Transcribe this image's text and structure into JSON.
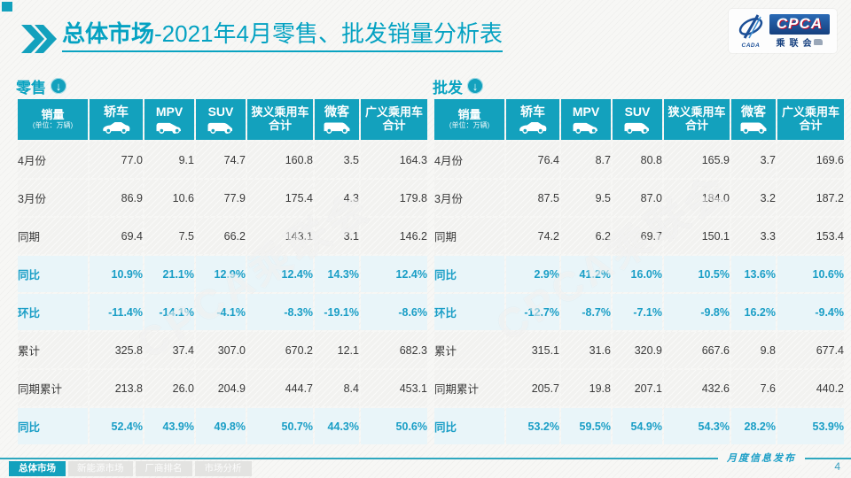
{
  "slide": {
    "title_primary": "总体市场",
    "title_secondary": "-2021年4月零售、批发销量分析表",
    "watermark": "CPCA乘联会",
    "footer_note": "月度信息发布",
    "page_number": "4"
  },
  "logo": {
    "acronym": "CPCA",
    "cn_name": "乘联会",
    "emblem_text": "CADA"
  },
  "table_columns": {
    "first": {
      "title": "销量",
      "unit": "(单位：万辆)"
    },
    "vehicle_columns": [
      {
        "label": "轿车",
        "icon": "sedan-icon"
      },
      {
        "label": "MPV",
        "icon": "mpv-icon"
      },
      {
        "label": "SUV",
        "icon": "suv-icon"
      },
      {
        "label": "狭义乘用车合计",
        "icon": ""
      },
      {
        "label": "微客",
        "icon": "microvan-icon"
      },
      {
        "label": "广义乘用车合计",
        "icon": ""
      }
    ]
  },
  "tables": [
    {
      "name": "零售",
      "rows": [
        {
          "label": "4月份",
          "highlight": false,
          "values": [
            "77.0",
            "9.1",
            "74.7",
            "160.8",
            "3.5",
            "164.3"
          ]
        },
        {
          "label": "3月份",
          "highlight": false,
          "values": [
            "86.9",
            "10.6",
            "77.9",
            "175.4",
            "4.3",
            "179.8"
          ]
        },
        {
          "label": "同期",
          "highlight": false,
          "values": [
            "69.4",
            "7.5",
            "66.2",
            "143.1",
            "3.1",
            "146.2"
          ]
        },
        {
          "label": "同比",
          "highlight": true,
          "values": [
            "10.9%",
            "21.1%",
            "12.9%",
            "12.4%",
            "14.3%",
            "12.4%"
          ]
        },
        {
          "label": "环比",
          "highlight": true,
          "values": [
            "-11.4%",
            "-14.1%",
            "-4.1%",
            "-8.3%",
            "-19.1%",
            "-8.6%"
          ]
        },
        {
          "label": "累计",
          "highlight": false,
          "values": [
            "325.8",
            "37.4",
            "307.0",
            "670.2",
            "12.1",
            "682.3"
          ]
        },
        {
          "label": "同期累计",
          "highlight": false,
          "values": [
            "213.8",
            "26.0",
            "204.9",
            "444.7",
            "8.4",
            "453.1"
          ]
        },
        {
          "label": "同比",
          "highlight": true,
          "values": [
            "52.4%",
            "43.9%",
            "49.8%",
            "50.7%",
            "44.3%",
            "50.6%"
          ]
        }
      ]
    },
    {
      "name": "批发",
      "rows": [
        {
          "label": "4月份",
          "highlight": false,
          "values": [
            "76.4",
            "8.7",
            "80.8",
            "165.9",
            "3.7",
            "169.6"
          ]
        },
        {
          "label": "3月份",
          "highlight": false,
          "values": [
            "87.5",
            "9.5",
            "87.0",
            "184.0",
            "3.2",
            "187.2"
          ]
        },
        {
          "label": "同期",
          "highlight": false,
          "values": [
            "74.2",
            "6.2",
            "69.7",
            "150.1",
            "3.3",
            "153.4"
          ]
        },
        {
          "label": "同比",
          "highlight": true,
          "values": [
            "2.9%",
            "41.2%",
            "16.0%",
            "10.5%",
            "13.6%",
            "10.6%"
          ]
        },
        {
          "label": "环比",
          "highlight": true,
          "values": [
            "-12.7%",
            "-8.7%",
            "-7.1%",
            "-9.8%",
            "16.2%",
            "-9.4%"
          ]
        },
        {
          "label": "累计",
          "highlight": false,
          "values": [
            "315.1",
            "31.6",
            "320.9",
            "667.6",
            "9.8",
            "677.4"
          ]
        },
        {
          "label": "同期累计",
          "highlight": false,
          "values": [
            "205.7",
            "19.8",
            "207.1",
            "432.6",
            "7.6",
            "440.2"
          ]
        },
        {
          "label": "同比",
          "highlight": true,
          "values": [
            "53.2%",
            "59.5%",
            "54.9%",
            "54.3%",
            "28.2%",
            "53.9%"
          ]
        }
      ]
    }
  ],
  "tabs": [
    {
      "label": "总体市场",
      "active": true
    },
    {
      "label": "新能源市场",
      "active": false
    },
    {
      "label": "厂商排名",
      "active": false
    },
    {
      "label": "市场分析",
      "active": false
    }
  ],
  "colors": {
    "accent": "#13a1bd",
    "percent_text": "#1a9ec6",
    "highlight_bg": "#e9f5f9",
    "logo_blue": "#16407f",
    "logo_red": "#c8102e"
  }
}
